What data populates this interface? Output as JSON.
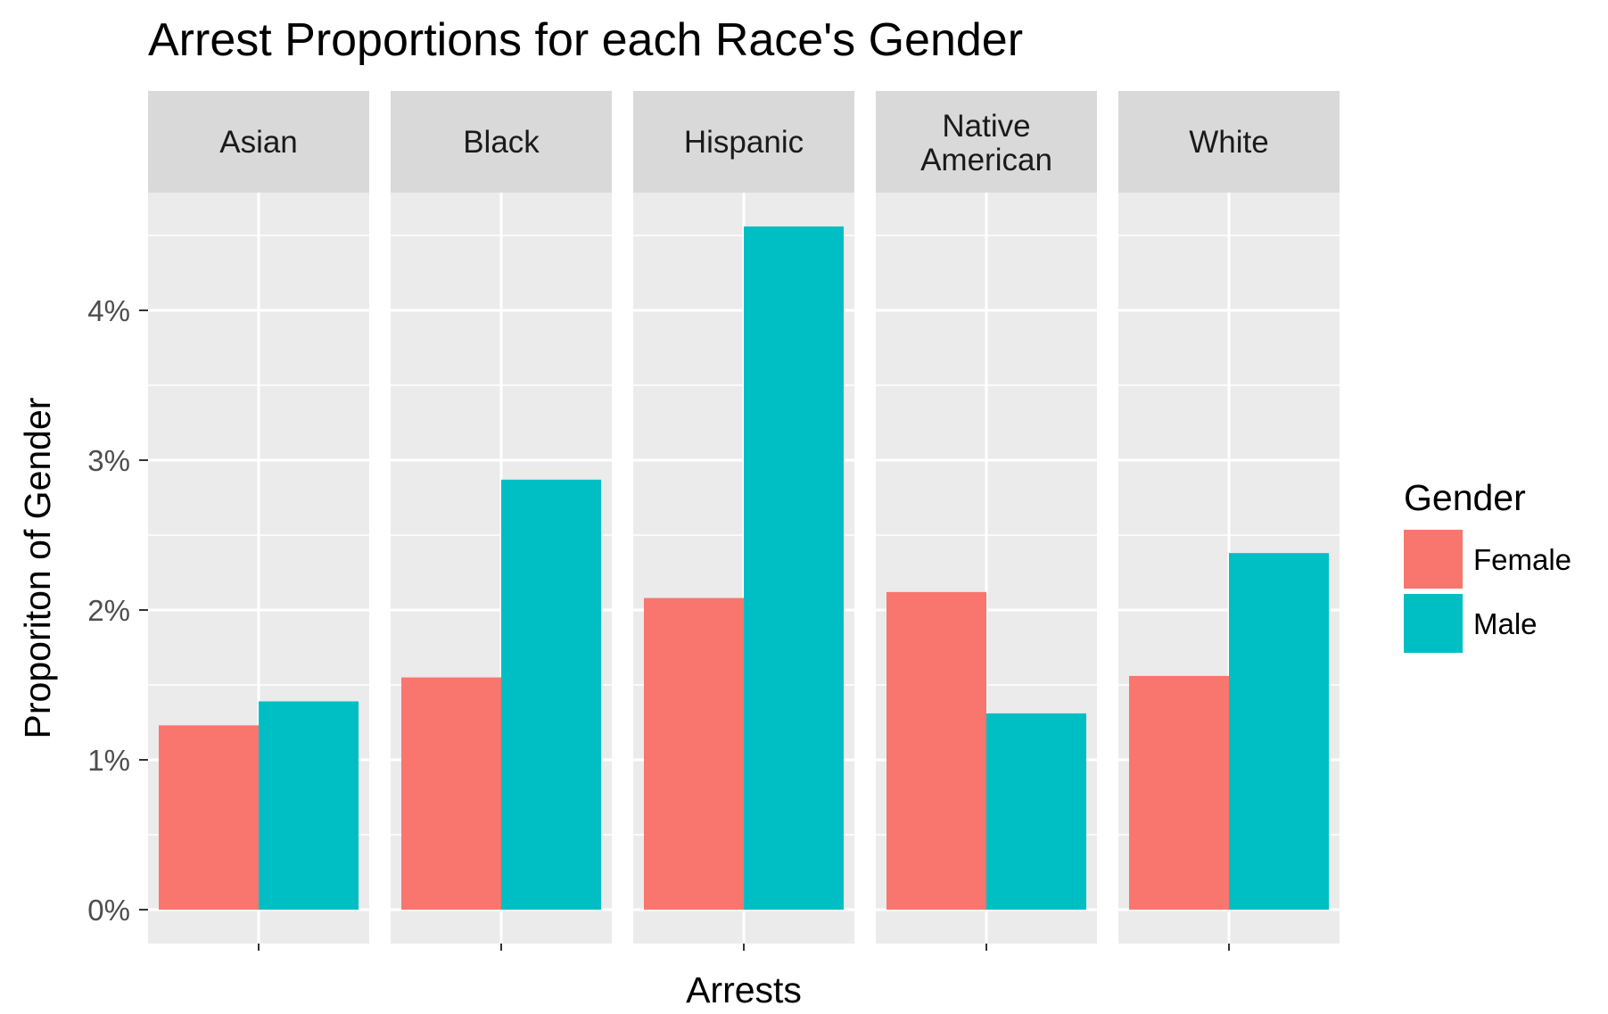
{
  "chart_data": {
    "type": "bar",
    "title": "Arrest Proportions for each Race's Gender",
    "xlabel": "Arrests",
    "ylabel": "Proporiton of Gender",
    "ylim": [
      0,
      4.8
    ],
    "y_ticks": [
      "0%",
      "1%",
      "2%",
      "3%",
      "4%"
    ],
    "y_tick_values": [
      0,
      1,
      2,
      3,
      4
    ],
    "grid": true,
    "legend": {
      "title": "Gender",
      "position": "right",
      "entries": [
        "Female",
        "Male"
      ]
    },
    "facets": [
      "Asian",
      "Black",
      "Hispanic",
      "Native American",
      "White"
    ],
    "series": [
      {
        "name": "Female",
        "color": "#F8766D",
        "values": [
          1.23,
          1.55,
          2.08,
          2.12,
          1.56
        ]
      },
      {
        "name": "Male",
        "color": "#00BFC4",
        "values": [
          1.39,
          2.87,
          4.56,
          1.31,
          2.38
        ]
      }
    ],
    "panel_background": "#EBEBEB",
    "strip_background": "#D9D9D9",
    "grid_color": "#FFFFFF",
    "unit": "%"
  }
}
